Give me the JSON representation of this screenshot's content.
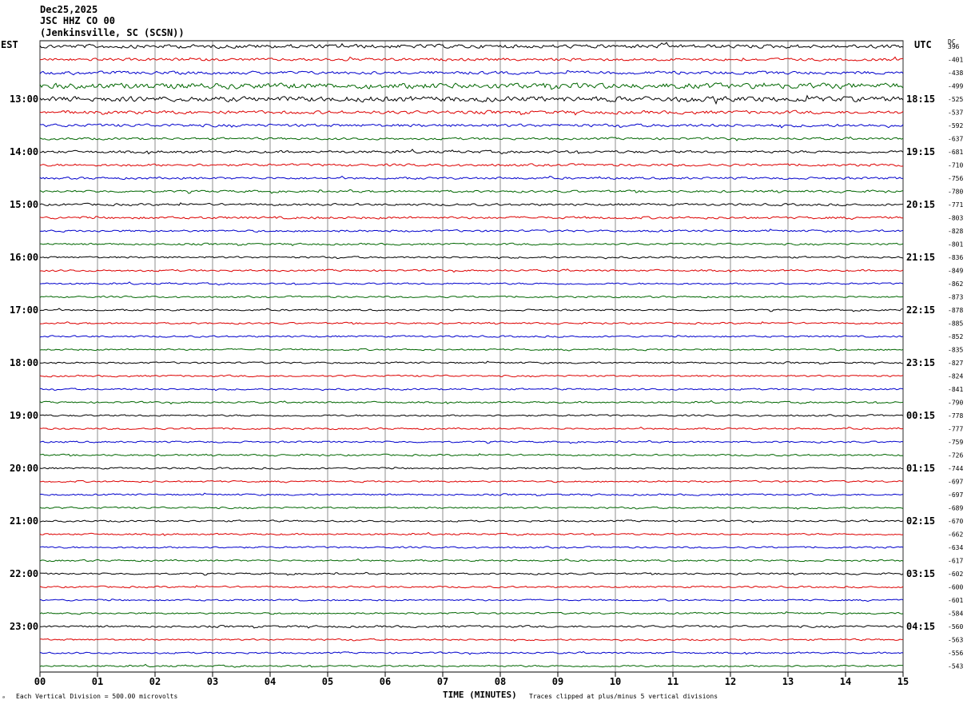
{
  "header": {
    "date": "Dec25,2025",
    "station": "JSC HHZ CO 00",
    "location": "(Jenkinsville, SC (SCSN))"
  },
  "left_tz": "EST",
  "right_tz": "UTC",
  "dc_label": "DC",
  "footer": {
    "scale": "Each Vertical Division =  500.00 microvolts",
    "clip": "Traces clipped at plus/minus 5 vertical divisions",
    "corner": "ᵃ"
  },
  "colors": {
    "cycle": [
      "#000000",
      "#dd0000",
      "#0000cc",
      "#006600"
    ],
    "grid": "#000000"
  },
  "chart_data": {
    "type": "line",
    "title": "",
    "xlabel": "TIME (MINUTES)",
    "ylabel": "",
    "xlim": [
      0,
      15
    ],
    "x_ticks": [
      "00",
      "01",
      "02",
      "03",
      "04",
      "05",
      "06",
      "07",
      "08",
      "09",
      "10",
      "11",
      "12",
      "13",
      "14",
      "15"
    ],
    "grid": true,
    "trace_count": 48,
    "left_hour_labels": [
      {
        "trace": 4,
        "text": "13:00"
      },
      {
        "trace": 8,
        "text": "14:00"
      },
      {
        "trace": 12,
        "text": "15:00"
      },
      {
        "trace": 16,
        "text": "16:00"
      },
      {
        "trace": 20,
        "text": "17:00"
      },
      {
        "trace": 24,
        "text": "18:00"
      },
      {
        "trace": 28,
        "text": "19:00"
      },
      {
        "trace": 32,
        "text": "20:00"
      },
      {
        "trace": 36,
        "text": "21:00"
      },
      {
        "trace": 40,
        "text": "22:00"
      },
      {
        "trace": 44,
        "text": "23:00"
      }
    ],
    "right_hour_labels": [
      {
        "trace": 4,
        "text": "18:15"
      },
      {
        "trace": 8,
        "text": "19:15"
      },
      {
        "trace": 12,
        "text": "20:15"
      },
      {
        "trace": 16,
        "text": "21:15"
      },
      {
        "trace": 20,
        "text": "22:15"
      },
      {
        "trace": 24,
        "text": "23:15"
      },
      {
        "trace": 28,
        "text": "00:15"
      },
      {
        "trace": 32,
        "text": "01:15"
      },
      {
        "trace": 36,
        "text": "02:15"
      },
      {
        "trace": 40,
        "text": "03:15"
      },
      {
        "trace": 44,
        "text": "04:15"
      }
    ],
    "dc_offsets": [
      "396",
      "-401",
      "-438",
      "-499",
      "-525",
      "-537",
      "-592",
      "-637",
      "-681",
      "-710",
      "-756",
      "-780",
      "-771",
      "-803",
      "-828",
      "-801",
      "-836",
      "-849",
      "-862",
      "-873",
      "-878",
      "-885",
      "-852",
      "-835",
      "-827",
      "-824",
      "-841",
      "-790",
      "-778",
      "-777",
      "-759",
      "-726",
      "-744",
      "-697",
      "-697",
      "-689",
      "-670",
      "-662",
      "-634",
      "-617",
      "-602",
      "-600",
      "-601",
      "-584",
      "-560",
      "-563",
      "-556",
      "-543"
    ],
    "amplitude": [
      2.2,
      1.6,
      1.8,
      3.2,
      3.0,
      1.9,
      1.7,
      1.3,
      1.5,
      1.4,
      1.3,
      1.3,
      1.3,
      1.4,
      1.2,
      1.1,
      1.1,
      1.1,
      1.0,
      1.0,
      1.0,
      1.0,
      1.0,
      1.0,
      1.0,
      1.0,
      1.0,
      1.0,
      1.0,
      1.0,
      1.0,
      1.0,
      1.0,
      1.0,
      1.0,
      1.0,
      1.0,
      1.0,
      1.0,
      1.0,
      1.0,
      1.0,
      1.0,
      1.0,
      1.2,
      1.0,
      1.0,
      1.0
    ]
  }
}
